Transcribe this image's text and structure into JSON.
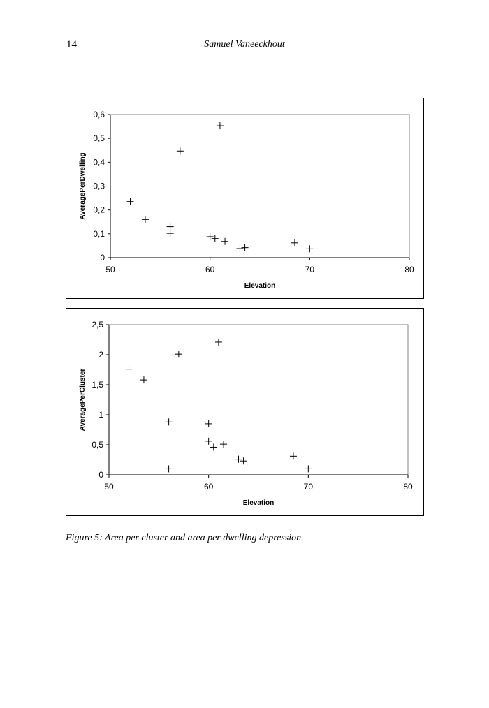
{
  "header": {
    "page_number": "14",
    "author": "Samuel Vaneeckhout"
  },
  "caption": "Figure 5: Area per cluster and area per dwelling depression.",
  "chart_data": [
    {
      "type": "scatter",
      "marker": "plus",
      "xlabel": "Elevation",
      "ylabel": "AveragePerDwelling",
      "xlim": [
        50,
        80
      ],
      "ylim": [
        0,
        0.6
      ],
      "x_ticks": [
        50,
        60,
        70,
        80
      ],
      "x_tick_labels": [
        "50",
        "60",
        "70",
        "80"
      ],
      "y_ticks": [
        0,
        0.1,
        0.2,
        0.3,
        0.4,
        0.5,
        0.6
      ],
      "y_tick_labels": [
        "0",
        "0,1",
        "0,2",
        "0,3",
        "0,4",
        "0,5",
        "0,6"
      ],
      "grid": false,
      "legend": "none",
      "points": [
        {
          "x": 52,
          "y": 0.235
        },
        {
          "x": 53.5,
          "y": 0.16
        },
        {
          "x": 56,
          "y": 0.13
        },
        {
          "x": 56,
          "y": 0.102
        },
        {
          "x": 57,
          "y": 0.447
        },
        {
          "x": 60,
          "y": 0.088
        },
        {
          "x": 60.5,
          "y": 0.08
        },
        {
          "x": 61,
          "y": 0.553
        },
        {
          "x": 61.5,
          "y": 0.068
        },
        {
          "x": 63,
          "y": 0.038
        },
        {
          "x": 63.5,
          "y": 0.042
        },
        {
          "x": 68.5,
          "y": 0.062
        },
        {
          "x": 70,
          "y": 0.037
        }
      ]
    },
    {
      "type": "scatter",
      "marker": "plus",
      "xlabel": "Elevation",
      "ylabel": "AveragePerCluster",
      "xlim": [
        50,
        80
      ],
      "ylim": [
        0,
        2.5
      ],
      "x_ticks": [
        50,
        60,
        70,
        80
      ],
      "x_tick_labels": [
        "50",
        "60",
        "70",
        "80"
      ],
      "y_ticks": [
        0,
        0.5,
        1,
        1.5,
        2,
        2.5
      ],
      "y_tick_labels": [
        "0",
        "0,5",
        "1",
        "1,5",
        "2",
        "2,5"
      ],
      "grid": false,
      "legend": "none",
      "points": [
        {
          "x": 52,
          "y": 1.76
        },
        {
          "x": 53.5,
          "y": 1.58
        },
        {
          "x": 56,
          "y": 0.88
        },
        {
          "x": 56,
          "y": 0.1
        },
        {
          "x": 57,
          "y": 2.01
        },
        {
          "x": 60,
          "y": 0.85
        },
        {
          "x": 60,
          "y": 0.56
        },
        {
          "x": 60.5,
          "y": 0.46
        },
        {
          "x": 61,
          "y": 2.21
        },
        {
          "x": 61.5,
          "y": 0.51
        },
        {
          "x": 63,
          "y": 0.26
        },
        {
          "x": 63.5,
          "y": 0.23
        },
        {
          "x": 68.5,
          "y": 0.31
        },
        {
          "x": 70,
          "y": 0.1
        }
      ]
    }
  ]
}
